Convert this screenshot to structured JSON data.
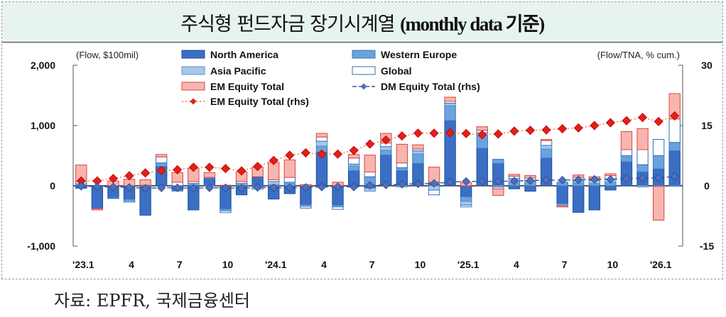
{
  "title_main": "주식형 펀드자금 장기시계열 ",
  "title_paren": "(monthly data 기준)",
  "source": "자료: EPFR,  국제금융센터",
  "chart_data": {
    "type": "bar",
    "stacked": true,
    "left_unit": "(Flow, $100mil)",
    "right_unit": "(Flow/TNA, % cum.)",
    "ylim_left": [
      -1000,
      2000
    ],
    "ylim_right": [
      -15,
      30
    ],
    "yticks_left": [
      -1000,
      0,
      1000,
      2000
    ],
    "ytick_labels_left": [
      "-1,000",
      "0",
      "1,000",
      "2,000"
    ],
    "yticks_right": [
      -15,
      0,
      15,
      30
    ],
    "ytick_labels_right": [
      "-15",
      "0",
      "15",
      "30"
    ],
    "grid": false,
    "legend_position": "top",
    "x_labels": [
      "'23.1",
      "4",
      "7",
      "10",
      "'24.1",
      "4",
      "7",
      "10",
      "'25.1",
      "4",
      "7",
      "10",
      "'26.1"
    ],
    "x_label_every": 3,
    "categories": [
      "'23.1",
      "'23.2",
      "'23.3",
      "'23.4",
      "'23.5",
      "'23.6",
      "'23.7",
      "'23.8",
      "'23.9",
      "'23.10",
      "'23.11",
      "'23.12",
      "'24.1",
      "'24.2",
      "'24.3",
      "'24.4",
      "'24.5",
      "'24.6",
      "'24.7",
      "'24.8",
      "'24.9",
      "'24.10",
      "'24.11",
      "'24.12",
      "'25.1",
      "'25.2",
      "'25.3",
      "'25.4",
      "'25.5",
      "'25.6",
      "'25.7",
      "'25.8",
      "'25.9",
      "'25.10",
      "'25.11",
      "'25.12",
      "'26.1",
      "'26.2"
    ],
    "series": [
      {
        "name": "North America",
        "kind": "bar",
        "axis": "left",
        "color": "#3a6fc4",
        "border": "#1f4f9e",
        "values": [
          -40,
          -380,
          -180,
          -230,
          -480,
          320,
          -80,
          -400,
          120,
          -380,
          -150,
          150,
          -220,
          -130,
          -320,
          560,
          -330,
          250,
          -40,
          510,
          250,
          370,
          30,
          1080,
          -180,
          620,
          370,
          -50,
          -90,
          460,
          -300,
          -440,
          -400,
          -70,
          400,
          230,
          280,
          580
        ]
      },
      {
        "name": "Western Europe",
        "kind": "bar",
        "axis": "left",
        "color": "#6aa3dc",
        "border": "#3a78c0",
        "values": [
          15,
          0,
          -10,
          0,
          0,
          60,
          0,
          20,
          20,
          -15,
          20,
          -15,
          20,
          40,
          0,
          100,
          0,
          80,
          150,
          80,
          50,
          160,
          30,
          250,
          -80,
          210,
          70,
          60,
          70,
          150,
          60,
          50,
          40,
          60,
          80,
          120,
          220,
          140
        ]
      },
      {
        "name": "Asia Pacific",
        "kind": "bar",
        "axis": "left",
        "color": "#a8c8ec",
        "border": "#5b8fcc",
        "values": [
          20,
          0,
          -10,
          -20,
          10,
          0,
          -10,
          20,
          -10,
          -20,
          20,
          -10,
          50,
          20,
          -20,
          80,
          -20,
          30,
          -50,
          60,
          -20,
          50,
          -70,
          40,
          -60,
          50,
          -20,
          60,
          20,
          60,
          -20,
          30,
          50,
          50,
          20,
          -20,
          -10,
          -10
        ]
      },
      {
        "name": "Global",
        "kind": "bar",
        "axis": "left",
        "color": "#ffffff",
        "border": "#2e6dbf",
        "values": [
          40,
          0,
          -10,
          -20,
          -10,
          100,
          60,
          30,
          0,
          -30,
          30,
          -30,
          30,
          80,
          -30,
          70,
          -40,
          100,
          80,
          60,
          80,
          30,
          -80,
          30,
          -30,
          40,
          -30,
          40,
          40,
          80,
          -20,
          60,
          30,
          60,
          100,
          250,
          270,
          390
        ]
      },
      {
        "name": "EM Equity Total",
        "kind": "bar",
        "axis": "left",
        "color": "#f7b5b0",
        "border": "#e0443c",
        "values": [
          270,
          -20,
          80,
          110,
          90,
          40,
          160,
          220,
          80,
          10,
          160,
          160,
          290,
          290,
          20,
          60,
          60,
          60,
          280,
          160,
          310,
          70,
          250,
          70,
          50,
          60,
          -110,
          30,
          40,
          20,
          -10,
          40,
          30,
          30,
          300,
          350,
          -560,
          420
        ]
      },
      {
        "name": "EM Equity Total (rhs)",
        "kind": "line",
        "axis": "right",
        "color": "#f1763e",
        "marker_color": "#e0201a",
        "values": [
          1.2,
          1.2,
          1.8,
          2.5,
          3.2,
          3.8,
          4.0,
          4.6,
          4.6,
          4.3,
          3.7,
          4.8,
          6.3,
          7.6,
          8.2,
          7.9,
          7.9,
          8.8,
          10.4,
          11.4,
          12.4,
          13.1,
          13.1,
          13.2,
          13.0,
          12.7,
          12.9,
          13.6,
          13.8,
          13.9,
          14.2,
          14.4,
          15.0,
          15.7,
          16.2,
          17.0,
          16.0,
          17.4
        ]
      },
      {
        "name": "DM Equity Total (rhs)",
        "kind": "line",
        "axis": "right",
        "color": "#3255a4",
        "marker_color": "#4f6fb8",
        "values": [
          -0.1,
          -0.2,
          -0.3,
          -0.4,
          -0.6,
          -0.5,
          -0.5,
          -0.6,
          -0.5,
          -0.5,
          -0.6,
          -0.4,
          -0.5,
          -0.5,
          -0.4,
          -0.3,
          -0.2,
          -0.3,
          0.1,
          0.2,
          0.4,
          0.5,
          0.6,
          0.9,
          1.1,
          1.1,
          1.1,
          1.2,
          1.3,
          1.4,
          1.4,
          1.5,
          1.6,
          1.6,
          1.8,
          1.9,
          2.0,
          2.3
        ]
      }
    ]
  }
}
